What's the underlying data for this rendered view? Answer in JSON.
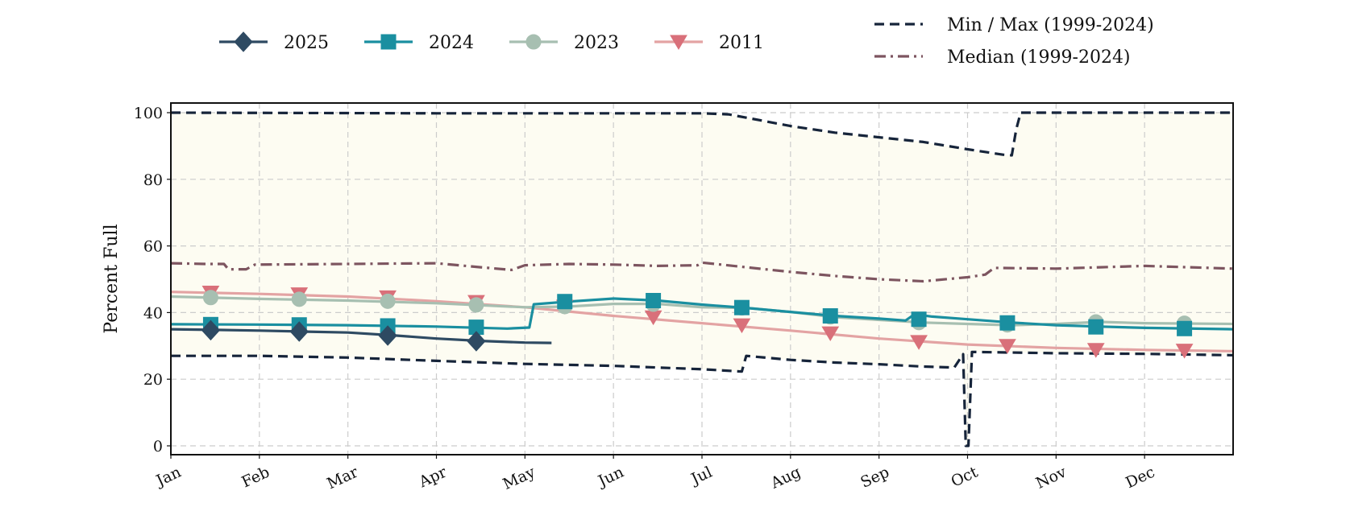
{
  "chart_data": {
    "type": "line",
    "ylabel": "Percent Full",
    "xlabel": "",
    "title": "",
    "ylim": [
      0,
      100
    ],
    "yticks": [
      0,
      20,
      40,
      60,
      80,
      100
    ],
    "x_unit": "month",
    "xlim": [
      0,
      12
    ],
    "months": [
      "Jan",
      "Feb",
      "Mar",
      "Apr",
      "May",
      "Jun",
      "Jul",
      "Aug",
      "Sep",
      "Oct",
      "Nov",
      "Dec"
    ],
    "grid": true,
    "legend_position": "top",
    "background_band": {
      "from": "min",
      "to": "max",
      "color": "#fdfcf2"
    },
    "series": [
      {
        "name": "2025",
        "color": "#2e4a62",
        "marker": "diamond",
        "style": "solid",
        "points": [
          [
            0,
            35
          ],
          [
            0.5,
            34.8
          ],
          [
            1,
            34.6
          ],
          [
            1.5,
            34.3
          ],
          [
            2,
            34
          ],
          [
            2.5,
            33.2
          ],
          [
            3,
            32.2
          ],
          [
            3.5,
            31.5
          ],
          [
            4,
            31
          ],
          [
            4.3,
            30.9
          ]
        ],
        "markers": [
          [
            0.45,
            34.7
          ],
          [
            1.45,
            34.3
          ],
          [
            2.45,
            33.1
          ],
          [
            3.45,
            31.4
          ]
        ]
      },
      {
        "name": "2024",
        "color": "#1a8fa0",
        "marker": "square",
        "style": "solid",
        "points": [
          [
            0,
            36.5
          ],
          [
            1,
            36.4
          ],
          [
            2,
            36.2
          ],
          [
            3,
            35.8
          ],
          [
            3.8,
            35.2
          ],
          [
            4.05,
            35.5
          ],
          [
            4.1,
            42.5
          ],
          [
            4.5,
            43.3
          ],
          [
            5,
            44.2
          ],
          [
            5.5,
            43.6
          ],
          [
            6,
            42.4
          ],
          [
            6.5,
            41.4
          ],
          [
            7,
            40.2
          ],
          [
            7.5,
            39
          ],
          [
            8,
            38.2
          ],
          [
            8.3,
            37.6
          ],
          [
            8.4,
            39.5
          ],
          [
            8.6,
            38.8
          ],
          [
            9,
            38
          ],
          [
            9.5,
            37
          ],
          [
            10,
            36.2
          ],
          [
            10.5,
            35.8
          ],
          [
            11,
            35.4
          ],
          [
            12,
            35
          ]
        ],
        "markers": [
          [
            0.45,
            36.4
          ],
          [
            1.45,
            36.3
          ],
          [
            2.45,
            36
          ],
          [
            3.45,
            35.6
          ],
          [
            4.45,
            43.3
          ],
          [
            5.45,
            43.6
          ],
          [
            6.45,
            41.5
          ],
          [
            7.45,
            39
          ],
          [
            8.45,
            38
          ],
          [
            9.45,
            36.9
          ],
          [
            10.45,
            35.7
          ],
          [
            11.45,
            35.2
          ]
        ]
      },
      {
        "name": "2023",
        "color": "#a7bfb1",
        "marker": "circle",
        "style": "solid",
        "points": [
          [
            0,
            44.8
          ],
          [
            1,
            44.1
          ],
          [
            2,
            43.6
          ],
          [
            3,
            42.8
          ],
          [
            4,
            41.6
          ],
          [
            4.5,
            41.8
          ],
          [
            5,
            42.6
          ],
          [
            5.5,
            42.6
          ],
          [
            6,
            41.6
          ],
          [
            6.5,
            41.4
          ],
          [
            7,
            40.2
          ],
          [
            7.5,
            38.6
          ],
          [
            8,
            37.8
          ],
          [
            8.5,
            37
          ],
          [
            9,
            36.6
          ],
          [
            9.5,
            36.2
          ],
          [
            10,
            36.6
          ],
          [
            10.5,
            37.2
          ],
          [
            11,
            36.8
          ],
          [
            12,
            36.6
          ]
        ],
        "markers": [
          [
            0.45,
            44.5
          ],
          [
            1.45,
            44
          ],
          [
            2.45,
            43.4
          ],
          [
            3.45,
            42.3
          ],
          [
            4.45,
            41.8
          ],
          [
            5.45,
            42.5
          ],
          [
            6.45,
            41.4
          ],
          [
            7.45,
            38.7
          ],
          [
            8.45,
            37
          ],
          [
            9.45,
            36.3
          ],
          [
            10.45,
            37.2
          ],
          [
            11.45,
            36.8
          ]
        ]
      },
      {
        "name": "2011",
        "color": "#d9707a",
        "marker": "triangle-down",
        "style": "solid",
        "points": [
          [
            0,
            46.2
          ],
          [
            1,
            45.6
          ],
          [
            2,
            44.8
          ],
          [
            3,
            43.4
          ],
          [
            4,
            41.6
          ],
          [
            5,
            39
          ],
          [
            6,
            36.8
          ],
          [
            7,
            34.6
          ],
          [
            8,
            32.2
          ],
          [
            9,
            30.4
          ],
          [
            10,
            29.4
          ],
          [
            11,
            28.8
          ],
          [
            12,
            28.4
          ]
        ],
        "markers": [
          [
            0.45,
            46
          ],
          [
            1.45,
            45.5
          ],
          [
            2.45,
            44.6
          ],
          [
            3.45,
            43.2
          ],
          [
            4.45,
            41.8
          ],
          [
            5.45,
            38.6
          ],
          [
            6.45,
            36.2
          ],
          [
            7.45,
            33.8
          ],
          [
            8.45,
            31.2
          ],
          [
            9.45,
            30
          ],
          [
            10.45,
            28.8
          ],
          [
            11.45,
            28.6
          ]
        ]
      },
      {
        "name": "Min / Max (1999-2024)",
        "color": "#16243a",
        "marker": "none",
        "style": "dashed",
        "max_points": [
          [
            0,
            100
          ],
          [
            3,
            99.8
          ],
          [
            6,
            99.8
          ],
          [
            6.3,
            99.5
          ],
          [
            6.5,
            98.5
          ],
          [
            7,
            96
          ],
          [
            7.5,
            94
          ],
          [
            8,
            92.6
          ],
          [
            8.5,
            91.2
          ],
          [
            9,
            89
          ],
          [
            9.4,
            87.4
          ],
          [
            9.5,
            87.2
          ],
          [
            9.55,
            95
          ],
          [
            9.6,
            100
          ],
          [
            12,
            100
          ]
        ],
        "min_points": [
          [
            0,
            27
          ],
          [
            1,
            27
          ],
          [
            2,
            26.5
          ],
          [
            3,
            25.5
          ],
          [
            4,
            24.6
          ],
          [
            5,
            24
          ],
          [
            6,
            23
          ],
          [
            6.45,
            22.3
          ],
          [
            6.5,
            27
          ],
          [
            7,
            25.8
          ],
          [
            7.5,
            25
          ],
          [
            8,
            24.5
          ],
          [
            8.5,
            23.8
          ],
          [
            8.85,
            23.5
          ],
          [
            8.95,
            27.5
          ],
          [
            8.98,
            0
          ],
          [
            9.01,
            0
          ],
          [
            9.05,
            28.2
          ],
          [
            10,
            27.8
          ],
          [
            11,
            27.6
          ],
          [
            12,
            27.2
          ]
        ]
      },
      {
        "name": "Median (1999-2024)",
        "color": "#7d5560",
        "marker": "none",
        "style": "dashdot",
        "points": [
          [
            0,
            54.8
          ],
          [
            0.4,
            54.6
          ],
          [
            0.6,
            54.6
          ],
          [
            0.65,
            53
          ],
          [
            0.85,
            53
          ],
          [
            0.95,
            54.4
          ],
          [
            2,
            54.6
          ],
          [
            3,
            54.8
          ],
          [
            3.5,
            53.6
          ],
          [
            3.85,
            52.8
          ],
          [
            4,
            54.2
          ],
          [
            4.5,
            54.6
          ],
          [
            5,
            54.4
          ],
          [
            5.5,
            54
          ],
          [
            5.95,
            54.2
          ],
          [
            6,
            55
          ],
          [
            6.5,
            53.6
          ],
          [
            7,
            52.2
          ],
          [
            7.5,
            51
          ],
          [
            8,
            50
          ],
          [
            8.5,
            49.4
          ],
          [
            9,
            50.6
          ],
          [
            9.2,
            51.4
          ],
          [
            9.3,
            53.4
          ],
          [
            10,
            53.2
          ],
          [
            10.5,
            53.6
          ],
          [
            11,
            54
          ],
          [
            12,
            53.2
          ]
        ]
      }
    ]
  }
}
